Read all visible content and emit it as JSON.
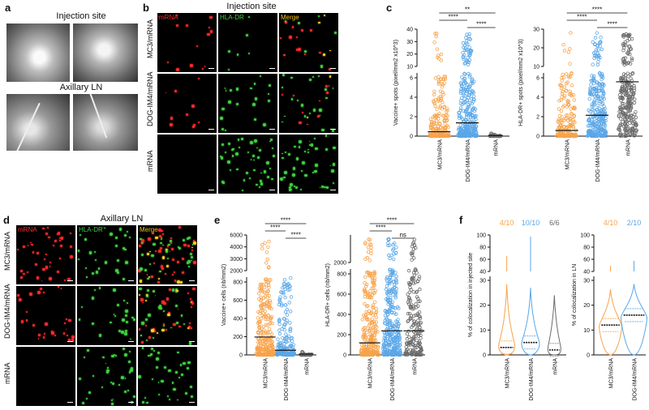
{
  "panels": {
    "a": {
      "letter": "a",
      "title_top": "Injection site",
      "title_bottom": "Axillary LN"
    },
    "b": {
      "letter": "b",
      "title": "Injection site",
      "channels": [
        "mRNA",
        "HLA-DR",
        "Merge"
      ],
      "rows": [
        "MC3/mRNA",
        "DOG-IM4/mRNA",
        "mRNA"
      ]
    },
    "c": {
      "letter": "c"
    },
    "d": {
      "letter": "d",
      "title": "Axillary LN",
      "channels": [
        "mRNA",
        "HLA-DR",
        "Merge"
      ],
      "rows": [
        "MC3/mRNA",
        "DOG-IM4/mRNA",
        "mRNA"
      ]
    },
    "e": {
      "letter": "e"
    },
    "f": {
      "letter": "f"
    }
  },
  "colors": {
    "mc3": "#f7a34b",
    "dog": "#5aa7e8",
    "mrna": "#6b6b6b",
    "red_channel": "#ff2a2a",
    "green_channel": "#3fd13f",
    "merge_label": "#f5c518"
  },
  "chart_data": [
    {
      "id": "c-left",
      "type": "scatter",
      "categories": [
        "MC3/mRNA",
        "DOG-IM4/mRNA",
        "mRNA"
      ],
      "ylabel": "Vaccine+ spots (pixel/mm2 x10^3)",
      "yticks_low": [
        "0",
        "2",
        "4",
        "6"
      ],
      "yticks_high": [
        "10",
        "20",
        "30",
        "40"
      ],
      "means": [
        0.4,
        1.2,
        0.05
      ],
      "significance": [
        "**",
        "****",
        "****"
      ]
    },
    {
      "id": "c-right",
      "type": "scatter",
      "categories": [
        "MC3/mRNA",
        "DOG-IM4/mRNA",
        "mRNA"
      ],
      "ylabel": "HLA-DR+ spots (pixel/mm2 x10^3)",
      "yticks_low": [
        "0",
        "2",
        "4",
        "6"
      ],
      "yticks_high": [
        "10",
        "20",
        "30"
      ],
      "means": [
        0.6,
        2.2,
        6.0
      ],
      "significance": [
        "****",
        "****",
        "****"
      ]
    },
    {
      "id": "e-left",
      "type": "scatter",
      "categories": [
        "MC3/mRNA",
        "DOG-IM4/mRNA",
        "mRNA"
      ],
      "ylabel": "Vaccine+ cells (nb/mm2)",
      "yticks_low": [
        "0",
        "200",
        "400",
        "600",
        "800"
      ],
      "yticks_high": [
        "2000",
        "3000",
        "4000",
        "6000"
      ],
      "means": [
        190,
        50,
        5
      ],
      "significance": [
        "****",
        "****",
        "****"
      ]
    },
    {
      "id": "e-right",
      "type": "scatter",
      "categories": [
        "MC3/mRNA",
        "DOG-IM4/mRNA",
        "mRNA"
      ],
      "ylabel": "HLA-DR+ cells (nb/mm2)",
      "yticks_low": [
        "0",
        "200",
        "400",
        "600",
        "800"
      ],
      "yticks_high": [
        "2000"
      ],
      "means": [
        120,
        240,
        240
      ],
      "significance": [
        "****",
        "****",
        "ns"
      ]
    },
    {
      "id": "f-left",
      "type": "violin",
      "categories": [
        "MC3/mRNA",
        "DOG-IM4/mRNA",
        "mRNA"
      ],
      "ylabel": "% of colocalization in injected site",
      "yticks_low": [
        "0",
        "10",
        "20",
        "30"
      ],
      "yticks_high": [
        "40",
        "60",
        "80",
        "100"
      ],
      "medians": [
        3,
        5,
        2
      ],
      "fractions": [
        "4/10",
        "10/10",
        "6/6"
      ]
    },
    {
      "id": "f-right",
      "type": "violin",
      "categories": [
        "MC3/mRNA",
        "DOG-IM4/mRNA"
      ],
      "ylabel": "% of colocalization in LN",
      "yticks_low": [
        "0",
        "10",
        "20",
        "30"
      ],
      "yticks_high": [
        "40",
        "60",
        "80",
        "100"
      ],
      "medians": [
        12,
        16
      ],
      "fractions": [
        "4/10",
        "2/10"
      ]
    }
  ]
}
